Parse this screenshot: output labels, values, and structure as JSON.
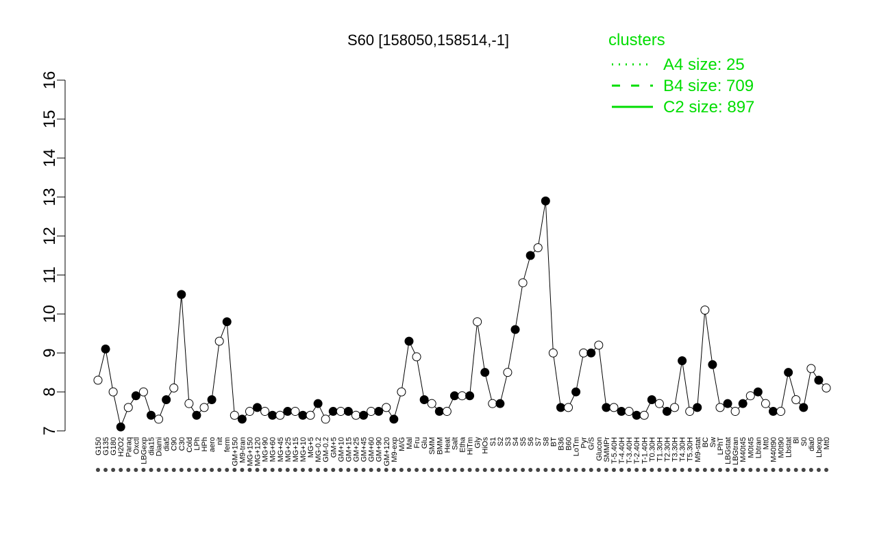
{
  "chart_data": {
    "type": "line",
    "title": "S60 [158050,158514,-1]",
    "xlabel": "",
    "ylabel": "",
    "ylim": [
      7,
      16
    ],
    "yticks": [
      7,
      8,
      9,
      10,
      11,
      12,
      13,
      14,
      15,
      16
    ],
    "grid": false,
    "legend": {
      "title": "clusters",
      "placement": "top-right",
      "entries": [
        {
          "label": "A4 size: 25",
          "style": "dotted"
        },
        {
          "label": "B4 size: 709",
          "style": "dashed"
        },
        {
          "label": "C2 size: 897",
          "style": "solid"
        }
      ]
    },
    "colors": {
      "clusters": "#00dd00",
      "points": "#000000"
    },
    "categories": [
      "G150",
      "G135",
      "G180",
      "H2O2",
      "Paraq",
      "Oxctl",
      "LBGexp",
      "dia15",
      "Diami",
      "dia5",
      "C90",
      "C30",
      "Cold",
      "LPh",
      "HPh",
      "aero",
      "nit",
      "ferm",
      "GM+150",
      "M9-tran",
      "MG+150",
      "MG+120",
      "MG+90",
      "MG+60",
      "MG+45",
      "MG+25",
      "MG+15",
      "MG+10",
      "MG+5",
      "MG-0.2",
      "GM-0.2",
      "GM+5",
      "GM+10",
      "GM+15",
      "GM+25",
      "GM+45",
      "GM+60",
      "GM+90",
      "GM+120",
      "M9-exp",
      "M/G",
      "Mal",
      "Fru",
      "Glu",
      "SMM",
      "BMM",
      "Heat",
      "Salt",
      "Etha",
      "HiTm",
      "Gly",
      "HiOs",
      "S1",
      "S2",
      "S3",
      "S4",
      "S5",
      "S6",
      "S7",
      "S8",
      "BT",
      "B36",
      "B60",
      "LoTm",
      "Pyr",
      "G/S",
      "Glucon",
      "SMMPr",
      "T-5.40H",
      "T-4.40H",
      "T-3.40H",
      "T-2.40H",
      "T-1.40H",
      "T0.30H",
      "T1.30H",
      "T2.30H",
      "T3.30H",
      "T4.30H",
      "T5.30H",
      "M9-stat",
      "BC",
      "Sw",
      "LPhT",
      "LBGstat",
      "LBGtran",
      "M40t45",
      "M0t45",
      "Lbtran",
      "Mt0",
      "M40t90",
      "M0t90",
      "Lbstat",
      "Bl",
      "S0",
      "dia0",
      "Lbexp",
      "Mt0"
    ],
    "series": [
      {
        "name": "",
        "values": [
          8.3,
          9.1,
          8.0,
          7.1,
          7.6,
          7.9,
          8.0,
          7.4,
          7.3,
          7.8,
          8.1,
          10.5,
          7.7,
          7.4,
          7.6,
          7.8,
          9.3,
          9.8,
          7.4,
          7.3,
          7.5,
          7.6,
          7.5,
          7.4,
          7.4,
          7.5,
          7.5,
          7.4,
          7.4,
          7.7,
          7.3,
          7.5,
          7.5,
          7.5,
          7.4,
          7.4,
          7.5,
          7.5,
          7.6,
          7.3,
          8.0,
          9.3,
          8.9,
          7.8,
          7.7,
          7.5,
          7.5,
          7.9,
          7.9,
          7.9,
          9.8,
          8.5,
          7.7,
          7.7,
          8.5,
          9.6,
          10.8,
          11.5,
          11.7,
          12.9,
          9.0,
          7.6,
          7.6,
          8.0,
          9.0,
          9.0,
          9.2,
          7.6,
          7.6,
          7.5,
          7.5,
          7.4,
          7.4,
          7.8,
          7.7,
          7.5,
          7.6,
          8.8,
          7.5,
          7.6,
          10.1,
          8.7,
          7.6,
          7.7,
          7.5,
          7.7,
          7.9,
          8.0,
          7.7,
          7.5,
          7.5,
          8.5,
          7.8,
          7.6,
          8.6,
          8.3,
          8.1
        ]
      }
    ]
  }
}
